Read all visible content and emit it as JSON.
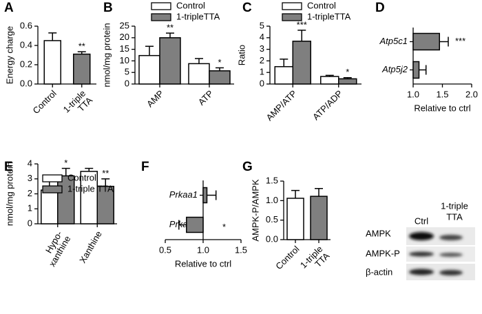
{
  "chart_data": [
    {
      "type": "bar",
      "panel": "A",
      "ylabel": "Energy charge",
      "categories": [
        "Control",
        [
          "1-triple",
          "TTA"
        ]
      ],
      "values": [
        0.45,
        0.31
      ],
      "errors": [
        0.08,
        0.025
      ],
      "colors": [
        "#ffffff",
        "#7f7f7f"
      ],
      "significance": [
        null,
        "**"
      ],
      "ylim": [
        0,
        0.6
      ],
      "yticks": [
        {
          "value": 0,
          "label": "0.0"
        },
        0.2,
        0.4,
        0.6
      ]
    },
    {
      "type": "bar",
      "panel": "B",
      "ylabel": "nmol/mg protein",
      "categories": [
        "AMP",
        "ATP"
      ],
      "series": [
        {
          "name": "Control",
          "color": "#ffffff",
          "values": [
            12.3,
            8.8
          ],
          "errors": [
            4,
            2.2
          ],
          "significance": [
            null,
            null
          ]
        },
        {
          "name": "1-tripleTTA",
          "color": "#7f7f7f",
          "values": [
            20,
            5.7
          ],
          "errors": [
            2,
            1.3
          ],
          "significance": [
            "**",
            "*"
          ]
        }
      ],
      "legend": true,
      "ylim": [
        0,
        25
      ],
      "yticks": [
        0,
        5,
        10,
        15,
        20,
        25
      ]
    },
    {
      "type": "bar",
      "panel": "C",
      "ylabel": "Ratio",
      "categories": [
        "AMP/ATP",
        "ATP/ADP"
      ],
      "series": [
        {
          "name": "Control",
          "color": "#ffffff",
          "values": [
            1.5,
            0.65
          ],
          "errors": [
            0.65,
            0.1
          ],
          "significance": [
            null,
            null
          ]
        },
        {
          "name": "1-tripleTTA",
          "color": "#7f7f7f",
          "values": [
            3.7,
            0.45
          ],
          "errors": [
            0.95,
            0.1
          ],
          "significance": [
            "***",
            "*"
          ]
        }
      ],
      "legend": true,
      "ylim": [
        0,
        5
      ],
      "yticks": [
        0,
        1,
        2,
        3,
        4,
        5
      ]
    },
    {
      "type": "barh",
      "panel": "D",
      "xlabel": "Relative to ctrl",
      "category_style": "italic",
      "categories": [
        "Atp5c1",
        "Atp5j2"
      ],
      "values": [
        1.45,
        1.1
      ],
      "errors": [
        0.15,
        0.12
      ],
      "color": "#7f7f7f",
      "significance": [
        "***",
        null
      ],
      "bar_base": 1,
      "xlim": [
        1,
        2
      ],
      "xticks": [
        {
          "value": 1,
          "label": "1.0"
        },
        1.5,
        {
          "value": 2,
          "label": "2.0"
        }
      ]
    },
    {
      "type": "bar",
      "panel": "E",
      "ylabel": "nmol/mg protein",
      "categories": [
        [
          "Hypo-",
          "xanthine"
        ],
        "Xanthine"
      ],
      "series": [
        {
          "name": "Control",
          "color": "#ffffff",
          "values": [
            2.25,
            3.5
          ],
          "errors": [
            0.8,
            0.2
          ],
          "significance": [
            null,
            null
          ]
        },
        {
          "name": "1-triple TTA",
          "color": "#7f7f7f",
          "values": [
            3.2,
            2.5
          ],
          "errors": [
            0.5,
            0.5
          ],
          "significance": [
            "*",
            "**"
          ]
        }
      ],
      "legend": true,
      "ylim": [
        0,
        4
      ],
      "yticks": [
        0,
        1,
        2,
        3,
        4
      ]
    },
    {
      "type": "barh",
      "panel": "F",
      "xlabel": "Relative to ctrl",
      "category_style": "italic",
      "categories": [
        "Prkaa1",
        "Prkaa2"
      ],
      "values": [
        1.05,
        0.78
      ],
      "errors": [
        0.12,
        0.1
      ],
      "color": "#7f7f7f",
      "significance": [
        null,
        "*"
      ],
      "bar_base": 1,
      "xlim": [
        0.5,
        1.5
      ],
      "xticks": [
        0.5,
        {
          "value": 1,
          "label": "1.0"
        },
        1.5
      ]
    },
    {
      "type": "bar",
      "panel": "G",
      "ylabel": "AMPK-P/AMPK",
      "categories": [
        "Control",
        [
          "1-triple",
          "TTA"
        ]
      ],
      "values": [
        1.06,
        1.11
      ],
      "errors": [
        0.2,
        0.2
      ],
      "colors": [
        "#ffffff",
        "#7f7f7f"
      ],
      "significance": [
        null,
        null
      ],
      "ylim": [
        0,
        1.5
      ],
      "yticks": [
        {
          "value": 0,
          "label": "0.0"
        },
        0.5,
        {
          "value": 1,
          "label": "1.0"
        },
        1.5
      ]
    }
  ],
  "blot": {
    "columns": [
      "Ctrl",
      [
        "1-triple",
        "TTA"
      ]
    ],
    "rows": [
      "AMPK",
      "AMPK-P",
      "β-actin"
    ]
  }
}
